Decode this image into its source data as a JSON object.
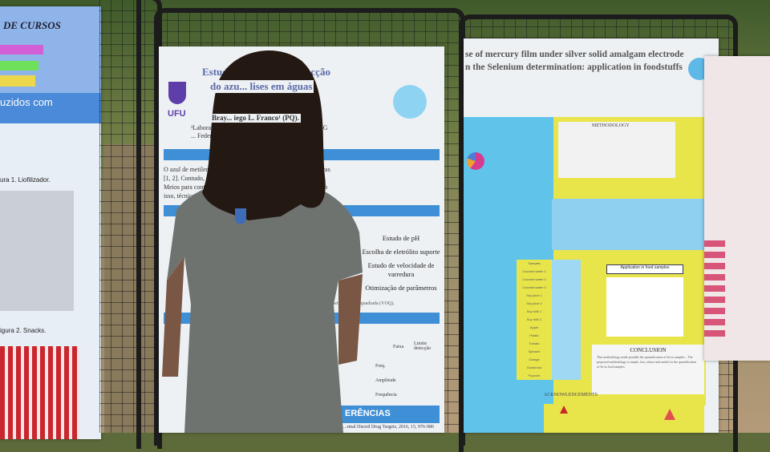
{
  "left_poster": {
    "heading": "DE CURSOS",
    "tag1": "...",
    "subtitle": "uzidos com",
    "fig1": "ura 1. Liofilizador.",
    "fig2": "igura 2. Snacks."
  },
  "center_poster": {
    "logo": "UFU",
    "title_line1": "Estudo e... zação da detecção",
    "title_line2": "do azu... lises em águas",
    "authors": "Bray... iego L. Franco¹ (PQ).",
    "affil1": "¹Laboratório de... ngenharia de Alimentos, UFU, MG",
    "affil2": "... Federal de Uberlândia, Campus Patos de Minas",
    "intro_lines": [
      "O azul de metileno ... omo auxílio no tratamento de queimaduras",
      "[1, 2]. Contudo, não é... ão desse corante em águas [3].",
      "Meios para contro... pelas indústrias, como a adsorção [4]. Com",
      "isso, técnicas ... eficiência de processos empregados na"
    ],
    "steps": [
      "Estudo de pH",
      "Escolha de eletrólito suporte",
      "Estudo de velocidade de varredura",
      "Otimização de parâmetros"
    ],
    "method_caption": "...metria de onda quadrada (VOQ).",
    "table_headers": [
      "Faixa",
      "Limite detecção"
    ],
    "table_rows": [
      "Freq.",
      "Amplitude",
      "Frequência"
    ],
    "references_heading": "ERÊNCIAS",
    "ref_line": "...rmal Disord Drug Targets, 2016, 15, 976-986"
  },
  "right_poster": {
    "title_line1": "se of mercury film under silver solid amalgam electrode",
    "title_line2": "n the Selenium determination: application in foodstuffs",
    "section_method": "METHODOLOGY",
    "section_app": "Application in food samples",
    "conclusion_heading": "CONCLUSION",
    "conclusion_text": "This methodology made possible the quantification of Se in samples... The proposed methodology is simple, fast, robust and useful for the quantification of Se in food samples.",
    "acknowledgements": "ACKNOWLEDGEMENTS",
    "samples": [
      "Samples",
      "Coconut water 1",
      "Coconut water 2",
      "Coconut water 3",
      "Soy juice 1",
      "Soy juice 2",
      "Soy milk 1",
      "Soy milk 2",
      "Apple",
      "Potato",
      "Tomato",
      "Spinach",
      "Orange",
      "Guavirova",
      "Popcorn"
    ]
  },
  "colors": {
    "blue": "#3f8fd6",
    "yellow": "#e8e54a",
    "cyan": "#5fc3ea",
    "shirt": "#6e7370",
    "hair": "#241812"
  }
}
